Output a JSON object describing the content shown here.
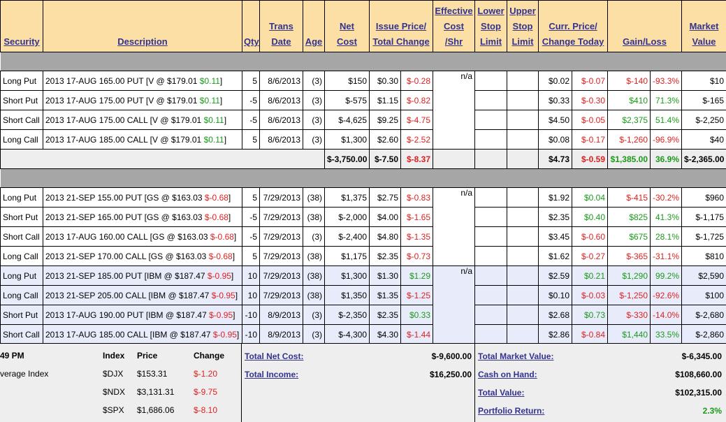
{
  "headers": {
    "security": "Security",
    "description": "Description",
    "qty": "Qty",
    "trans_date_1": "Trans",
    "trans_date_2": "Date",
    "age": "Age",
    "net_cost_1": "Net",
    "net_cost_2": "Cost",
    "issue_1": "Issue Price/",
    "issue_2": "Total Change",
    "eff_1": "Effective",
    "eff_2": "Cost",
    "eff_3": "/Shr",
    "lower_1": "Lower",
    "lower_2": "Stop",
    "lower_3": "Limit",
    "upper_1": "Upper",
    "upper_2": "Stop",
    "upper_3": "Limit",
    "curr_1": "Curr. Price/",
    "curr_2": "Change Today",
    "gain": "Gain/Loss",
    "mv_1": "Market",
    "mv_2": "Value"
  },
  "na": "n/a",
  "group1": {
    "rows": [
      {
        "security": "Long Put",
        "desc": "2013 17-AUG 165.00 PUT [V @ $179.01 ",
        "desc_chg": "$0.11",
        "desc_end": "]",
        "qty": "5",
        "date": "8/6/2013",
        "age": "(3)",
        "net": "$150",
        "issue": "$0.30",
        "issue_chg": "$-0.28",
        "curr": "$0.02",
        "curr_chg": "$-0.07",
        "gain": "$-140",
        "gain_pct": "-93.3%",
        "mv": "$10"
      },
      {
        "security": "Short Put",
        "desc": "2013 17-AUG 175.00 PUT [V @ $179.01 ",
        "desc_chg": "$0.11",
        "desc_end": "]",
        "qty": "-5",
        "date": "8/6/2013",
        "age": "(3)",
        "net": "$-575",
        "issue": "$1.15",
        "issue_chg": "$-0.82",
        "curr": "$0.33",
        "curr_chg": "$-0.30",
        "gain": "$410",
        "gain_pct": "71.3%",
        "mv": "$-165"
      },
      {
        "security": "Short Call",
        "desc": "2013 17-AUG 175.00 CALL [V @ $179.01 ",
        "desc_chg": "$0.11",
        "desc_end": "]",
        "qty": "-5",
        "date": "8/6/2013",
        "age": "(3)",
        "net": "$-4,625",
        "issue": "$9.25",
        "issue_chg": "$-4.75",
        "curr": "$4.50",
        "curr_chg": "$-0.05",
        "gain": "$2,375",
        "gain_pct": "51.4%",
        "mv": "$-2,250"
      },
      {
        "security": "Long Call",
        "desc": "2013 17-AUG 185.00 CALL [V @ $179.01 ",
        "desc_chg": "$0.11",
        "desc_end": "]",
        "qty": "5",
        "date": "8/6/2013",
        "age": "(3)",
        "net": "$1,300",
        "issue": "$2.60",
        "issue_chg": "$-2.52",
        "curr": "$0.08",
        "curr_chg": "$-0.17",
        "gain": "$-1,260",
        "gain_pct": "-96.9%",
        "mv": "$40"
      }
    ],
    "total": {
      "net": "$-3,750.00",
      "issue": "$-7.50",
      "issue_chg": "$-8.37",
      "curr": "$4.73",
      "curr_chg": "$-0.59",
      "gain": "$1,385.00",
      "gain_pct": "36.9%",
      "mv": "$-2,365.00"
    }
  },
  "group2": {
    "rows": [
      {
        "security": "Long Put",
        "desc": "2013 21-SEP 155.00 PUT [GS @ $163.03 ",
        "desc_chg": "$-0.68",
        "desc_end": "]",
        "qty": "5",
        "date": "7/29/2013",
        "age": "(38)",
        "net": "$1,375",
        "issue": "$2.75",
        "issue_chg": "$-0.83",
        "curr": "$1.92",
        "curr_chg": "$0.04",
        "gain": "$-415",
        "gain_pct": "-30.2%",
        "mv": "$960"
      },
      {
        "security": "Short Put",
        "desc": "2013 21-SEP 165.00 PUT [GS @ $163.03 ",
        "desc_chg": "$-0.68",
        "desc_end": "]",
        "qty": "-5",
        "date": "7/29/2013",
        "age": "(38)",
        "net": "$-2,000",
        "issue": "$4.00",
        "issue_chg": "$-1.65",
        "curr": "$2.35",
        "curr_chg": "$0.40",
        "gain": "$825",
        "gain_pct": "41.3%",
        "mv": "$-1,175"
      },
      {
        "security": "Short Call",
        "desc": "2013 17-AUG 160.00 CALL [GS @ $163.03 ",
        "desc_chg": "$-0.68",
        "desc_end": "]",
        "qty": "-5",
        "date": "7/29/2013",
        "age": "(3)",
        "net": "$-2,400",
        "issue": "$4.80",
        "issue_chg": "$-1.35",
        "curr": "$3.45",
        "curr_chg": "$-0.60",
        "gain": "$675",
        "gain_pct": "28.1%",
        "mv": "$-1,725"
      },
      {
        "security": "Long Call",
        "desc": "2013 21-SEP 170.00 CALL [GS @ $163.03 ",
        "desc_chg": "$-0.68",
        "desc_end": "]",
        "qty": "5",
        "date": "7/29/2013",
        "age": "(38)",
        "net": "$1,175",
        "issue": "$2.35",
        "issue_chg": "$-0.73",
        "curr": "$1.62",
        "curr_chg": "$-0.27",
        "gain": "$-365",
        "gain_pct": "-31.1%",
        "mv": "$810"
      }
    ]
  },
  "group3": {
    "rows": [
      {
        "security": "Long Put",
        "desc": "2013 21-SEP 185.00 PUT [IBM @ $187.47 ",
        "desc_chg": "$-0.95",
        "desc_end": "]",
        "qty": "10",
        "date": "7/29/2013",
        "age": "(38)",
        "net": "$1,300",
        "issue": "$1.30",
        "issue_chg": "$1.29",
        "curr": "$2.59",
        "curr_chg": "$0.21",
        "gain": "$1,290",
        "gain_pct": "99.2%",
        "mv": "$2,590"
      },
      {
        "security": "Long Call",
        "desc": "2013 21-SEP 205.00 CALL [IBM @ $187.47 ",
        "desc_chg": "$-0.95",
        "desc_end": "]",
        "qty": "10",
        "date": "7/29/2013",
        "age": "(38)",
        "net": "$1,350",
        "issue": "$1.35",
        "issue_chg": "$-1.25",
        "curr": "$0.10",
        "curr_chg": "$-0.03",
        "gain": "$-1,250",
        "gain_pct": "-92.6%",
        "mv": "$100"
      },
      {
        "security": "Short Put",
        "desc": "2013 17-AUG 190.00 PUT [IBM @ $187.47 ",
        "desc_chg": "$-0.95",
        "desc_end": "]",
        "qty": "-10",
        "date": "8/9/2013",
        "age": "(3)",
        "net": "$-2,350",
        "issue": "$2.35",
        "issue_chg": "$0.33",
        "curr": "$2.68",
        "curr_chg": "$0.73",
        "gain": "$-330",
        "gain_pct": "-14.0%",
        "mv": "$-2,680"
      },
      {
        "security": "Short Call",
        "desc": "2013 17-AUG 185.00 CALL [IBM @ $187.47 ",
        "desc_chg": "$-0.95",
        "desc_end": "]",
        "qty": "-10",
        "date": "8/9/2013",
        "age": "(3)",
        "net": "$-4,300",
        "issue": "$4.30",
        "issue_chg": "$-1.44",
        "curr": "$2.86",
        "curr_chg": "$-0.84",
        "gain": "$1,440",
        "gain_pct": "33.5%",
        "mv": "$-2,860"
      }
    ]
  },
  "footer": {
    "time": "49 PM",
    "index_label": "verage Index",
    "col_index": "Index",
    "col_price": "Price",
    "col_change": "Change",
    "indices": [
      {
        "name": "$DJX",
        "price": "$153.31",
        "change": "$-1.20"
      },
      {
        "name": "$NDX",
        "price": "$3,131.31",
        "change": "$-9.75"
      },
      {
        "name": "$SPX",
        "price": "$1,686.06",
        "change": "$-8.10"
      }
    ],
    "total_net_cost_label": "Total Net Cost:",
    "total_net_cost": "$-9,600.00",
    "total_income_label": "Total Income:",
    "total_income": "$16,250.00",
    "total_market_value_label": "Total Market Value:",
    "total_market_value": "$-6,345.00",
    "cash_on_hand_label": "Cash on Hand:",
    "cash_on_hand": "$108,660.00",
    "total_value_label": "Total Value:",
    "total_value": "$102,315.00",
    "portfolio_return_label": "Portfolio Return:",
    "portfolio_return": "2.3%"
  }
}
